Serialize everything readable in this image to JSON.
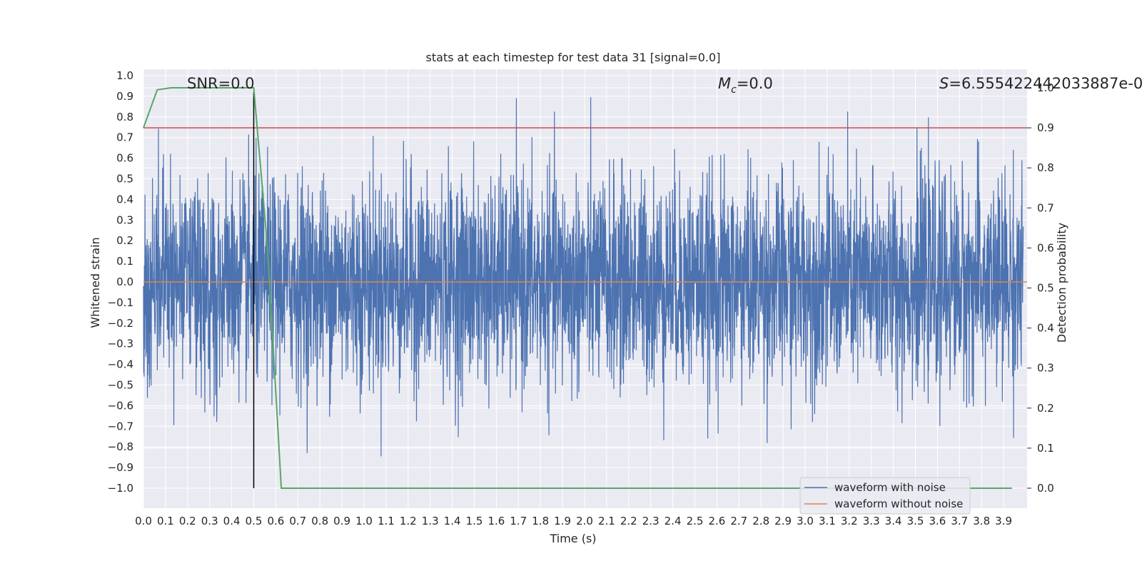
{
  "chart_data": {
    "type": "line",
    "title": "stats at each timestep for test data 31 [signal=0.0]",
    "xlabel": "Time (s)",
    "ylabel_left": "Whitened strain",
    "ylabel_right": "Detection probability",
    "xlim": [
      0.0,
      3.99
    ],
    "ylim_left": [
      -1.09,
      1.03
    ],
    "ylim_right": [
      -0.05,
      1.03
    ],
    "grid": true,
    "xticks": [
      "0.0",
      "0.1",
      "0.2",
      "0.3",
      "0.4",
      "0.5",
      "0.6",
      "0.7",
      "0.8",
      "0.9",
      "1.0",
      "1.1",
      "1.2",
      "1.3",
      "1.4",
      "1.5",
      "1.6",
      "1.7",
      "1.8",
      "1.9",
      "2.0",
      "2.1",
      "2.2",
      "2.3",
      "2.4",
      "2.5",
      "2.6",
      "2.7",
      "2.8",
      "2.9",
      "3.0",
      "3.1",
      "3.2",
      "3.3",
      "3.4",
      "3.5",
      "3.6",
      "3.7",
      "3.8",
      "3.9"
    ],
    "yticks_left": [
      "1.0",
      "0.9",
      "0.8",
      "0.7",
      "0.6",
      "0.5",
      "0.4",
      "0.3",
      "0.2",
      "0.1",
      "0.0",
      "−0.1",
      "−0.2",
      "−0.3",
      "−0.4",
      "−0.5",
      "−0.6",
      "−0.7",
      "−0.8",
      "−0.9",
      "−1.0"
    ],
    "yticks_right": [
      "1.0",
      "0.9",
      "0.8",
      "0.7",
      "0.6",
      "0.5",
      "0.4",
      "0.3",
      "0.2",
      "0.1",
      "0.0"
    ],
    "annotations": {
      "snr": "SNR=0.0",
      "mc_symbol": "M",
      "mc_sub": "c",
      "mc_value": "=0.0",
      "s_symbol": "S",
      "s_value": "=6.555422442033887e-0"
    },
    "series": [
      {
        "name": "waveform with noise",
        "color": "#4c72b0",
        "axis": "left",
        "kind": "noise",
        "amplitude": 1.0,
        "std": 0.25
      },
      {
        "name": "waveform without noise",
        "color": "#dd8452",
        "axis": "left",
        "values_constant": 0.0
      },
      {
        "name": "detection probability",
        "color": "#55a868",
        "axis": "right",
        "x": [
          0.0,
          0.0625,
          0.125,
          0.1875,
          0.25,
          0.3125,
          0.375,
          0.4375,
          0.5,
          0.5625,
          0.625,
          0.6875,
          0.75,
          3.9375
        ],
        "y": [
          0.9,
          0.995,
          1.0,
          1.0,
          1.0,
          1.0,
          1.0,
          1.0,
          1.0,
          0.6,
          0.0,
          0.0,
          0.0,
          0.0
        ]
      },
      {
        "name": "threshold",
        "color": "#c44e52",
        "axis": "right",
        "values_constant": 0.9
      },
      {
        "name": "merger time",
        "color": "#000000",
        "axis": "left",
        "x_constant": 0.5,
        "y_range": [
          -1.0,
          0.92
        ]
      }
    ],
    "legend": {
      "position": "lower right",
      "entries": [
        {
          "label": "waveform with noise",
          "color": "#4c72b0"
        },
        {
          "label": "waveform without noise",
          "color": "#dd8452"
        }
      ]
    }
  }
}
